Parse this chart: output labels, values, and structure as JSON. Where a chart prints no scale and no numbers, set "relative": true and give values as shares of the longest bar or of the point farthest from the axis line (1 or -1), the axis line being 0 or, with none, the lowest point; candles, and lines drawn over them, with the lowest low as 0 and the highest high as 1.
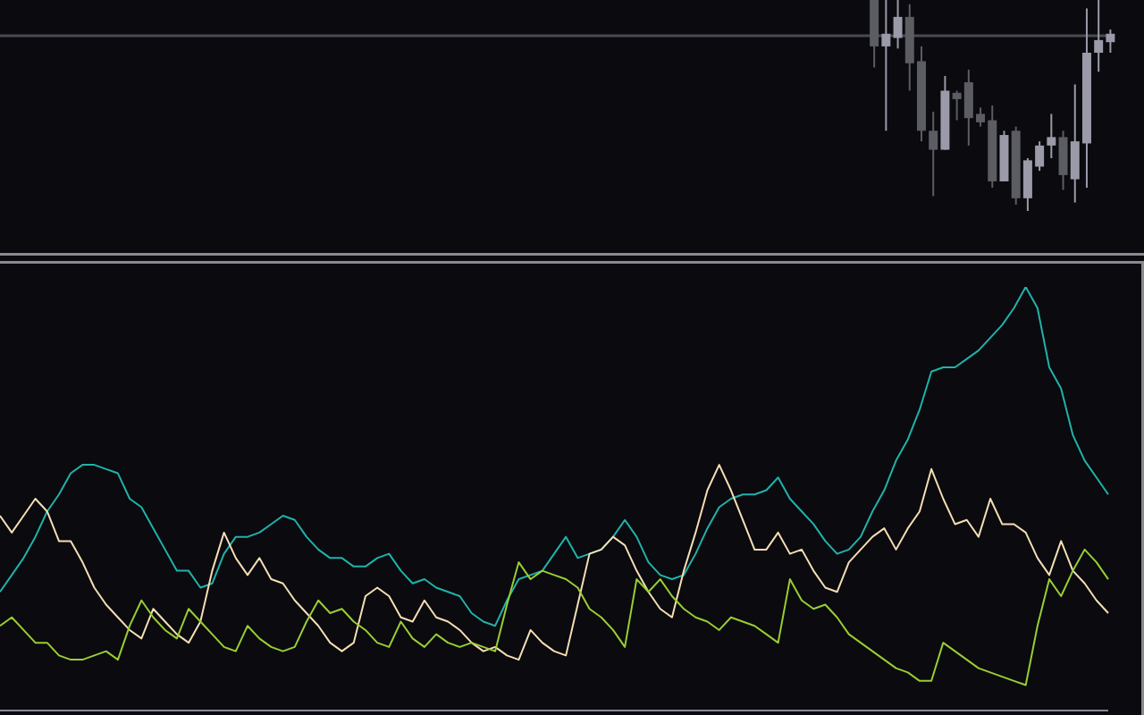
{
  "chart_data": [
    {
      "type": "candlestick",
      "relative": true,
      "tick_labels": false,
      "categories": [
        null,
        null,
        null,
        null,
        null,
        null,
        null,
        null,
        null,
        null,
        null,
        null,
        null,
        null,
        null,
        null,
        null,
        null,
        null,
        null,
        null,
        null,
        null,
        null,
        null,
        null,
        null,
        null,
        null,
        null,
        null,
        null,
        null,
        null,
        null,
        null,
        null,
        null,
        null,
        null,
        null,
        null,
        null,
        null,
        null,
        null,
        null,
        null,
        null,
        null,
        null,
        null,
        null,
        null,
        null,
        null,
        null,
        null,
        null,
        null,
        null,
        null,
        null,
        null,
        null,
        null,
        null,
        null,
        null,
        null,
        null,
        null,
        null,
        null,
        null,
        null,
        null,
        null,
        null,
        null,
        null,
        null,
        null,
        null,
        null,
        null,
        null,
        null,
        null,
        null,
        null,
        null,
        null,
        null,
        null
      ],
      "ohlc": [
        null,
        null,
        null,
        null,
        null,
        null,
        null,
        null,
        null,
        null,
        null,
        null,
        null,
        null,
        null,
        null,
        null,
        null,
        null,
        null,
        null,
        null,
        null,
        null,
        null,
        null,
        null,
        null,
        null,
        null,
        null,
        null,
        null,
        null,
        null,
        null,
        null,
        null,
        null,
        null,
        null,
        null,
        null,
        null,
        null,
        null,
        null,
        null,
        null,
        null,
        null,
        null,
        null,
        null,
        null,
        null,
        null,
        null,
        null,
        null,
        null,
        null,
        null,
        null,
        null,
        null,
        null,
        null,
        null,
        null,
        null,
        null,
        null,
        null,
        [
          1,
          1,
          0.68,
          0.78
        ],
        [
          0.78,
          1,
          0.38,
          0.84
        ],
        [
          0.82,
          1,
          0.77,
          0.92
        ],
        [
          0.92,
          0.98,
          0.57,
          0.7
        ],
        [
          0.71,
          0.78,
          0.33,
          0.38
        ],
        [
          0.38,
          0.47,
          0.07,
          0.29
        ],
        [
          0.29,
          0.64,
          0.29,
          0.57
        ],
        [
          0.56,
          0.57,
          0.43,
          0.53
        ],
        [
          0.61,
          0.67,
          0.31,
          0.44
        ],
        [
          0.46,
          0.49,
          0.4,
          0.42
        ],
        [
          0.43,
          0.5,
          0.11,
          0.14
        ],
        [
          0.14,
          0.38,
          0.14,
          0.36
        ],
        [
          0.38,
          0.4,
          0.03,
          0.06
        ],
        [
          0.06,
          0.25,
          0,
          0.24
        ],
        [
          0.21,
          0.33,
          0.19,
          0.31
        ],
        [
          0.31,
          0.46,
          0.25,
          0.35
        ],
        [
          0.35,
          0.38,
          0.1,
          0.17
        ],
        [
          0.15,
          0.6,
          0.04,
          0.33
        ],
        [
          0.32,
          0.96,
          0.11,
          0.75
        ],
        [
          0.75,
          1,
          0.66,
          0.81
        ],
        [
          0.8,
          0.86,
          0.75,
          0.84
        ]
      ],
      "colors": [
        null,
        null,
        null,
        null,
        null,
        null,
        null,
        null,
        null,
        null,
        null,
        null,
        null,
        null,
        null,
        null,
        null,
        null,
        null,
        null,
        null,
        null,
        null,
        null,
        null,
        null,
        null,
        null,
        null,
        null,
        null,
        null,
        null,
        null,
        null,
        null,
        null,
        null,
        null,
        null,
        null,
        null,
        null,
        null,
        null,
        null,
        null,
        null,
        null,
        null,
        null,
        null,
        null,
        null,
        null,
        null,
        null,
        null,
        null,
        null,
        null,
        null,
        null,
        null,
        null,
        null,
        null,
        null,
        null,
        null,
        null,
        null,
        null,
        null,
        "#5c5c63",
        "#9a9aa8",
        "#9a9aa8",
        "#5c5c63",
        "#5c5c63",
        "#5c5c63",
        "#9a9aa8",
        "#5c5c63",
        "#5c5c63",
        "#5c5c63",
        "#5c5c63",
        "#9a9aa8",
        "#5c5c63",
        "#9a9aa8",
        "#9a9aa8",
        "#9a9aa8",
        "#5c5c63",
        "#9a9aa8",
        "#9a9aa8",
        "#9a9aa8",
        "#9a9aa8"
      ],
      "ref_lines": [
        {
          "axis": "y",
          "value": 0.83,
          "color": "#4a4a55"
        }
      ]
    },
    {
      "type": "line",
      "relative": true,
      "tick_labels": false,
      "categories": [
        null,
        null,
        null,
        null,
        null,
        null,
        null,
        null,
        null,
        null,
        null,
        null,
        null,
        null,
        null,
        null,
        null,
        null,
        null,
        null,
        null,
        null,
        null,
        null,
        null,
        null,
        null,
        null,
        null,
        null,
        null,
        null,
        null,
        null,
        null,
        null,
        null,
        null,
        null,
        null,
        null,
        null,
        null,
        null,
        null,
        null,
        null,
        null,
        null,
        null,
        null,
        null,
        null,
        null,
        null,
        null,
        null,
        null,
        null,
        null,
        null,
        null,
        null,
        null,
        null,
        null,
        null,
        null,
        null,
        null,
        null,
        null,
        null,
        null,
        null,
        null,
        null,
        null,
        null,
        null,
        null,
        null,
        null,
        null,
        null,
        null,
        null,
        null,
        null,
        null,
        null,
        null,
        null,
        null,
        null
      ],
      "series": [
        {
          "color": "#20b2aa",
          "values": [
            0.28,
            0.32,
            0.36,
            0.41,
            0.47,
            0.51,
            0.56,
            0.58,
            0.58,
            0.57,
            0.56,
            0.5,
            0.48,
            0.43,
            0.38,
            0.33,
            0.33,
            0.29,
            0.3,
            0.37,
            0.41,
            0.41,
            0.42,
            0.44,
            0.46,
            0.45,
            0.41,
            0.38,
            0.36,
            0.36,
            0.34,
            0.34,
            0.36,
            0.37,
            0.33,
            0.3,
            0.31,
            0.29,
            0.28,
            0.27,
            0.23,
            0.21,
            0.2,
            0.26,
            0.31,
            0.32,
            0.33,
            0.37,
            0.41,
            0.36,
            0.37,
            0.38,
            0.41,
            0.45,
            0.41,
            0.35,
            0.32,
            0.31,
            0.32,
            0.37,
            0.43,
            0.48,
            0.5,
            0.51,
            0.51,
            0.52,
            0.55,
            0.5,
            0.47,
            0.44,
            0.4,
            0.37,
            0.38,
            0.41,
            0.47,
            0.52,
            0.59,
            0.64,
            0.71,
            0.8,
            0.81,
            0.81,
            0.83,
            0.85,
            0.88,
            0.91,
            0.95,
            1,
            0.95,
            0.81,
            0.76,
            0.65,
            0.59,
            0.55,
            0.51
          ]
        },
        {
          "color": "#f5deb3",
          "values": [
            0.46,
            0.42,
            0.46,
            0.5,
            0.47,
            0.4,
            0.4,
            0.35,
            0.29,
            0.25,
            0.22,
            0.19,
            0.17,
            0.24,
            0.21,
            0.18,
            0.16,
            0.21,
            0.33,
            0.42,
            0.36,
            0.32,
            0.36,
            0.31,
            0.3,
            0.26,
            0.23,
            0.2,
            0.16,
            0.14,
            0.16,
            0.27,
            0.29,
            0.27,
            0.22,
            0.21,
            0.26,
            0.22,
            0.21,
            0.19,
            0.16,
            0.14,
            0.15,
            0.13,
            0.12,
            0.19,
            0.16,
            0.14,
            0.13,
            0.25,
            0.37,
            0.38,
            0.41,
            0.39,
            0.33,
            0.28,
            0.24,
            0.22,
            0.33,
            0.42,
            0.52,
            0.58,
            0.52,
            0.45,
            0.38,
            0.38,
            0.42,
            0.37,
            0.38,
            0.33,
            0.29,
            0.28,
            0.35,
            0.38,
            0.41,
            0.43,
            0.38,
            0.43,
            0.47,
            0.57,
            0.5,
            0.44,
            0.45,
            0.41,
            0.5,
            0.44,
            0.44,
            0.42,
            0.36,
            0.32,
            0.4,
            0.33,
            0.3,
            0.26,
            0.23
          ]
        },
        {
          "color": "#9acd32",
          "values": [
            0.2,
            0.22,
            0.19,
            0.16,
            0.16,
            0.13,
            0.12,
            0.12,
            0.13,
            0.14,
            0.12,
            0.2,
            0.26,
            0.22,
            0.19,
            0.17,
            0.24,
            0.21,
            0.18,
            0.15,
            0.14,
            0.2,
            0.17,
            0.15,
            0.14,
            0.15,
            0.21,
            0.26,
            0.23,
            0.24,
            0.21,
            0.19,
            0.16,
            0.15,
            0.21,
            0.17,
            0.15,
            0.18,
            0.16,
            0.15,
            0.16,
            0.15,
            0.14,
            0.25,
            0.35,
            0.31,
            0.33,
            0.32,
            0.31,
            0.29,
            0.24,
            0.22,
            0.19,
            0.15,
            0.31,
            0.28,
            0.31,
            0.27,
            0.24,
            0.22,
            0.21,
            0.19,
            0.22,
            0.21,
            0.2,
            0.18,
            0.16,
            0.31,
            0.26,
            0.24,
            0.25,
            0.22,
            0.18,
            0.16,
            0.14,
            0.12,
            0.1,
            0.09,
            0.07,
            0.07,
            0.16,
            0.14,
            0.12,
            0.1,
            0.09,
            0.08,
            0.07,
            0.06,
            0.2,
            0.31,
            0.27,
            0.33,
            0.38,
            0.35,
            0.31
          ]
        }
      ]
    }
  ]
}
